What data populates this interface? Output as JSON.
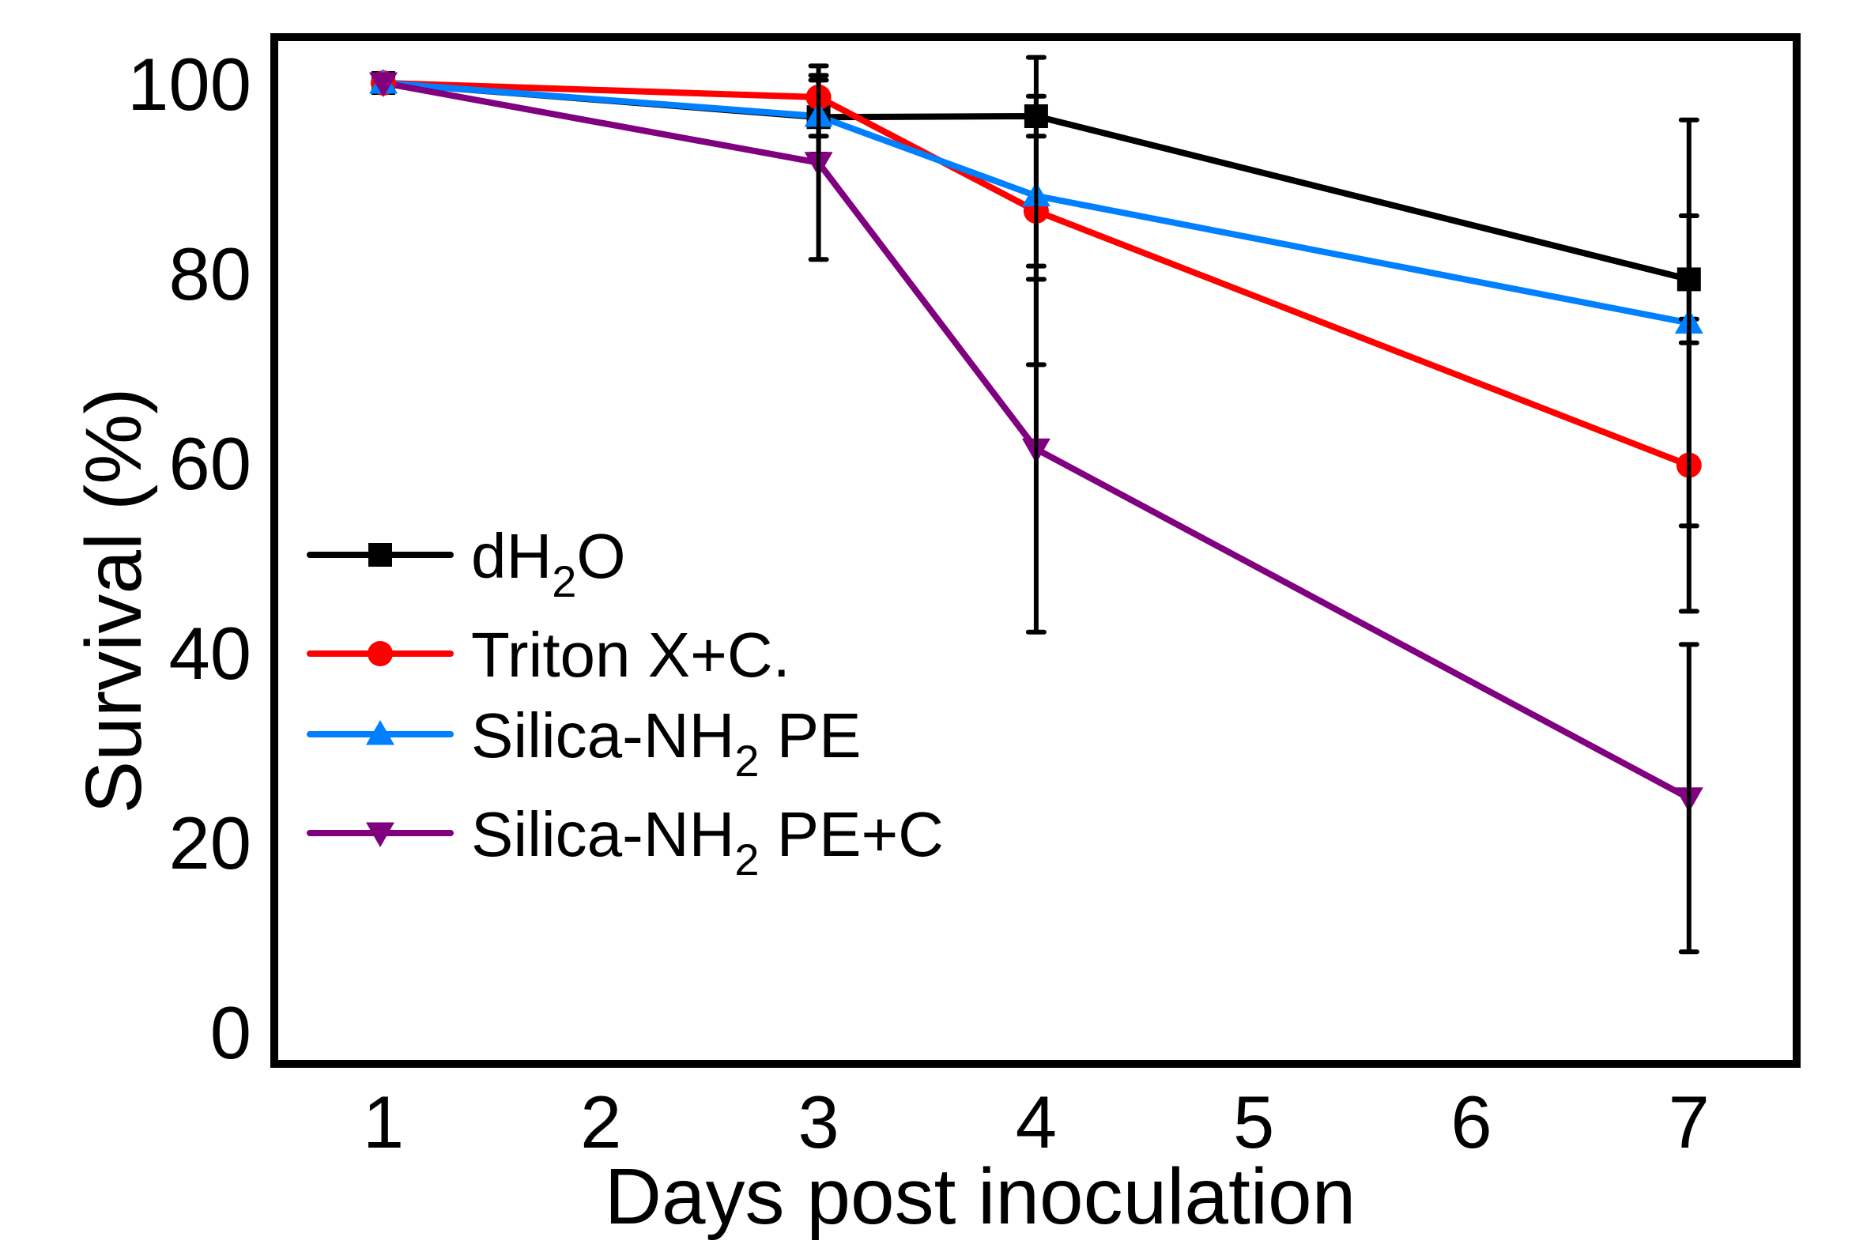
{
  "chart_data": {
    "type": "line",
    "title": "",
    "xlabel": "Days post inoculation",
    "ylabel": "Survival (%)",
    "x": [
      1,
      3,
      4,
      7
    ],
    "xlim": [
      0.5,
      7.5
    ],
    "ylim": [
      -5,
      105
    ],
    "xticks": [
      1,
      2,
      3,
      4,
      5,
      6,
      7
    ],
    "xtick_labels": [
      "1",
      "2",
      "3",
      "4",
      "5",
      "6",
      "7"
    ],
    "yticks": [
      0,
      20,
      40,
      60,
      80,
      100
    ],
    "ytick_labels": [
      "0",
      "20",
      "40",
      "60",
      "80",
      "100"
    ],
    "grid": false,
    "legend_position": "center-left",
    "series": [
      {
        "name": "dH2O",
        "label_parts": [
          {
            "text": "dH",
            "sub": false
          },
          {
            "text": "2",
            "sub": true
          },
          {
            "text": "O",
            "sub": false
          }
        ],
        "color": "#000000",
        "marker": "square",
        "values": [
          100,
          96.4,
          96.5,
          79.3
        ],
        "errors": [
          0,
          3.9,
          2.1,
          6.7
        ]
      },
      {
        "name": "Triton X+C.",
        "label_parts": [
          {
            "text": "Triton X+C.",
            "sub": false
          }
        ],
        "color": "#ff0000",
        "marker": "circle",
        "values": [
          100,
          98.5,
          86.5,
          59.7
        ],
        "errors": [
          0,
          2.3,
          16.2,
          15.4
        ]
      },
      {
        "name": "Silica-NH2 PE",
        "label_parts": [
          {
            "text": "Silica-NH",
            "sub": false
          },
          {
            "text": "2",
            "sub": true
          },
          {
            "text": " PE",
            "sub": false
          }
        ],
        "color": "#0080ff",
        "marker": "triangle-up",
        "values": [
          100,
          96.5,
          88.1,
          74.7
        ],
        "errors": [
          0,
          2.1,
          8.8,
          21.4
        ]
      },
      {
        "name": "Silica-NH2 PE+C",
        "label_parts": [
          {
            "text": "Silica-NH",
            "sub": false
          },
          {
            "text": "2",
            "sub": true
          },
          {
            "text": " PE+C",
            "sub": false
          }
        ],
        "color": "#800080",
        "marker": "triangle-down",
        "values": [
          100,
          91.6,
          61.4,
          24.6
        ],
        "errors": [
          0,
          10.2,
          19.3,
          16.2
        ]
      }
    ]
  }
}
